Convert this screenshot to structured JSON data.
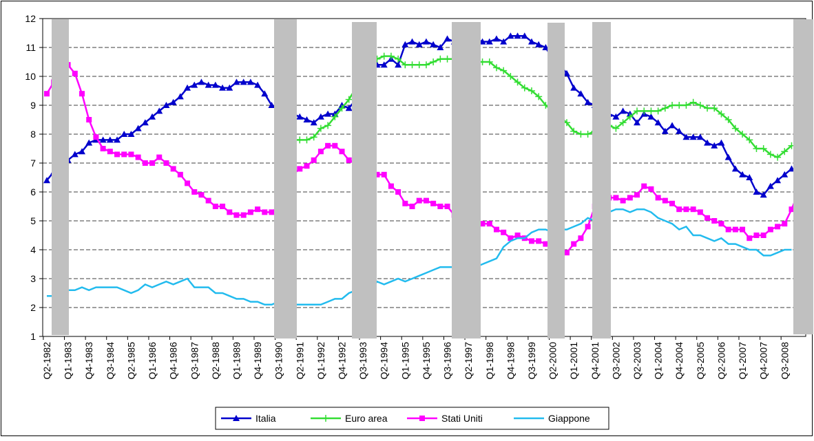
{
  "chart_data": {
    "type": "line",
    "categories": [
      "Q2-1982",
      null,
      null,
      "Q1-1983",
      null,
      null,
      "Q4-1983",
      null,
      null,
      "Q3-1984",
      null,
      null,
      "Q2-1985",
      null,
      null,
      "Q1-1986",
      null,
      null,
      "Q4-1986",
      null,
      null,
      "Q3-1987",
      null,
      null,
      "Q2-1988",
      null,
      null,
      "Q1-1989",
      null,
      null,
      "Q4-1989",
      null,
      null,
      "Q3-1990",
      null,
      null,
      "Q2-1991",
      null,
      null,
      "Q1-1992",
      null,
      null,
      "Q4-1992",
      null,
      null,
      "Q3-1993",
      null,
      null,
      "Q2-1994",
      null,
      null,
      "Q1-1995",
      null,
      null,
      "Q4-1995",
      null,
      null,
      "Q3-1996",
      null,
      null,
      "Q2-1997",
      null,
      null,
      "Q1-1998",
      null,
      null,
      "Q4-1998",
      null,
      null,
      "Q3-1999",
      null,
      null,
      "Q2-2000",
      null,
      null,
      "Q1-2001",
      null,
      null,
      "Q4-2001",
      null,
      null,
      "Q3-2002",
      null,
      null,
      "Q2-2003",
      null,
      null,
      "Q1-2004",
      null,
      null,
      "Q4-2004",
      null,
      null,
      "Q3-2005",
      null,
      null,
      "Q2-2006",
      null,
      null,
      "Q1-2007",
      null,
      null,
      "Q4-2007",
      null,
      null,
      "Q3-2008",
      null,
      null,
      null
    ],
    "series": [
      {
        "name": "Italia",
        "color": "#0000cc",
        "marker": "triangle",
        "values": [
          6.4,
          6.7,
          6.9,
          7.1,
          7.3,
          7.4,
          7.7,
          7.8,
          7.8,
          7.8,
          7.8,
          8.0,
          8.0,
          8.2,
          8.4,
          8.6,
          8.8,
          9.0,
          9.1,
          9.3,
          9.6,
          9.7,
          9.8,
          9.7,
          9.7,
          9.6,
          9.6,
          9.8,
          9.8,
          9.8,
          9.7,
          9.4,
          9.0,
          8.9,
          8.8,
          8.7,
          8.6,
          8.5,
          8.4,
          8.6,
          8.7,
          8.7,
          9.0,
          8.9,
          9.2,
          9.6,
          10.0,
          10.4,
          10.4,
          10.6,
          10.4,
          11.1,
          11.2,
          11.1,
          11.2,
          11.1,
          11.0,
          11.3,
          11.2,
          11.2,
          11.2,
          11.3,
          11.2,
          11.2,
          11.3,
          11.2,
          11.4,
          11.4,
          11.4,
          11.2,
          11.1,
          11.0,
          10.6,
          10.4,
          10.1,
          9.6,
          9.4,
          9.1,
          9.0,
          8.9,
          8.7,
          8.6,
          8.8,
          8.7,
          8.4,
          8.7,
          8.6,
          8.4,
          8.1,
          8.3,
          8.1,
          7.9,
          7.9,
          7.9,
          7.7,
          7.6,
          7.7,
          7.2,
          6.8,
          6.6,
          6.5,
          6.0,
          5.9,
          6.2,
          6.4,
          6.6,
          6.8,
          6.7,
          null
        ]
      },
      {
        "name": "Euro area",
        "color": "#33dd33",
        "marker": "plus",
        "values": [
          null,
          null,
          null,
          null,
          null,
          null,
          null,
          null,
          null,
          null,
          null,
          null,
          null,
          null,
          null,
          null,
          null,
          null,
          null,
          null,
          null,
          null,
          null,
          null,
          null,
          null,
          null,
          null,
          null,
          null,
          null,
          null,
          null,
          null,
          null,
          7.8,
          7.8,
          7.8,
          7.9,
          8.2,
          8.3,
          8.6,
          8.9,
          9.2,
          9.6,
          10.0,
          10.4,
          10.6,
          10.7,
          10.7,
          10.6,
          10.4,
          10.4,
          10.4,
          10.4,
          10.5,
          10.6,
          10.6,
          10.6,
          10.6,
          10.5,
          10.5,
          10.5,
          10.5,
          10.3,
          10.2,
          10.0,
          9.8,
          9.6,
          9.5,
          9.3,
          9.0,
          8.8,
          8.6,
          8.4,
          8.1,
          8.0,
          8.0,
          8.1,
          8.2,
          8.3,
          8.2,
          8.4,
          8.6,
          8.8,
          8.8,
          8.8,
          8.8,
          8.9,
          9.0,
          9.0,
          9.0,
          9.1,
          9.0,
          8.9,
          8.9,
          8.7,
          8.5,
          8.2,
          8.0,
          7.8,
          7.5,
          7.5,
          7.3,
          7.2,
          7.4,
          7.6,
          null,
          null
        ]
      },
      {
        "name": "Stati Uniti",
        "color": "#ff00ff",
        "marker": "square",
        "values": [
          9.4,
          9.8,
          10.2,
          10.4,
          10.1,
          9.4,
          8.5,
          7.9,
          7.5,
          7.4,
          7.3,
          7.3,
          7.3,
          7.2,
          7.0,
          7.0,
          7.2,
          7.0,
          6.8,
          6.6,
          6.3,
          6.0,
          5.9,
          5.7,
          5.5,
          5.5,
          5.3,
          5.2,
          5.2,
          5.3,
          5.4,
          5.3,
          5.3,
          5.5,
          6.0,
          6.6,
          6.8,
          6.9,
          7.1,
          7.4,
          7.6,
          7.6,
          7.4,
          7.1,
          7.0,
          6.8,
          6.6,
          6.6,
          6.6,
          6.2,
          6.0,
          5.6,
          5.5,
          5.7,
          5.7,
          5.6,
          5.5,
          5.5,
          5.2,
          5.3,
          5.1,
          5.0,
          4.9,
          4.9,
          4.7,
          4.6,
          4.4,
          4.5,
          4.4,
          4.3,
          4.3,
          4.2,
          4.1,
          4.0,
          3.9,
          4.2,
          4.4,
          4.8,
          5.5,
          5.7,
          5.8,
          5.8,
          5.7,
          5.8,
          5.9,
          6.2,
          6.1,
          5.8,
          5.7,
          5.6,
          5.4,
          5.4,
          5.4,
          5.3,
          5.1,
          5.0,
          4.9,
          4.7,
          4.7,
          4.7,
          4.4,
          4.5,
          4.5,
          4.7,
          4.8,
          4.9,
          5.4,
          6.0,
          null
        ]
      },
      {
        "name": "Giappone",
        "color": "#22bbee",
        "marker": "none",
        "values": [
          2.4,
          2.4,
          2.5,
          2.6,
          2.6,
          2.7,
          2.6,
          2.7,
          2.7,
          2.7,
          2.7,
          2.6,
          2.5,
          2.6,
          2.8,
          2.7,
          2.8,
          2.9,
          2.8,
          2.9,
          3.0,
          2.7,
          2.7,
          2.7,
          2.5,
          2.5,
          2.4,
          2.3,
          2.3,
          2.2,
          2.2,
          2.1,
          2.1,
          2.2,
          2.1,
          2.1,
          2.1,
          2.1,
          2.1,
          2.1,
          2.2,
          2.3,
          2.3,
          2.5,
          2.6,
          2.5,
          2.6,
          2.9,
          2.8,
          2.9,
          3.0,
          2.9,
          3.0,
          3.1,
          3.2,
          3.3,
          3.4,
          3.4,
          3.4,
          3.4,
          3.4,
          3.4,
          3.5,
          3.6,
          3.7,
          4.1,
          4.3,
          4.4,
          4.4,
          4.6,
          4.7,
          4.7,
          4.6,
          4.7,
          4.7,
          4.8,
          4.9,
          5.1,
          5.0,
          5.1,
          5.3,
          5.4,
          5.4,
          5.3,
          5.4,
          5.4,
          5.3,
          5.1,
          5.0,
          4.9,
          4.7,
          4.8,
          4.5,
          4.5,
          4.4,
          4.3,
          4.4,
          4.2,
          4.2,
          4.1,
          4.0,
          4.0,
          3.8,
          3.8,
          3.9,
          4.0,
          4.0,
          null,
          null
        ]
      }
    ],
    "ylim": [
      1,
      12
    ],
    "yticks": [
      1,
      2,
      3,
      4,
      5,
      6,
      7,
      8,
      9,
      10,
      11,
      12
    ],
    "grid": true,
    "legend": "bottom"
  }
}
